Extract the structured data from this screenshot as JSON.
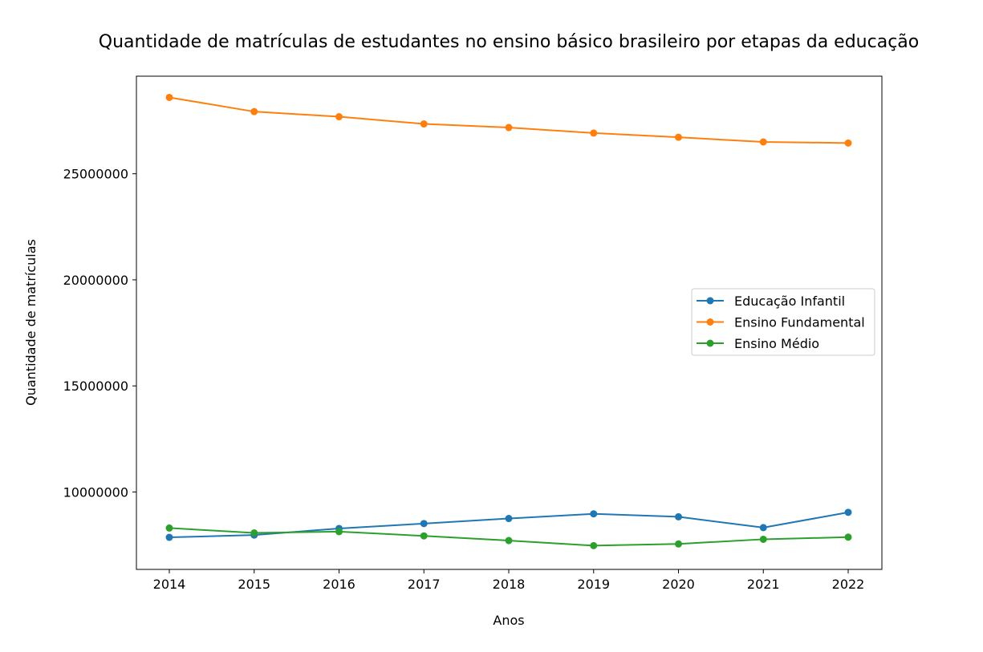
{
  "chart_data": {
    "type": "line",
    "title": "Quantidade de matrículas de estudantes no ensino básico brasileiro por etapas da educação",
    "xlabel": "Anos",
    "ylabel": "Quantidade de matrículas",
    "x": [
      "2014",
      "2015",
      "2016",
      "2017",
      "2018",
      "2019",
      "2020",
      "2021",
      "2022"
    ],
    "yticks": [
      "10000000",
      "15000000",
      "20000000",
      "25000000"
    ],
    "ylim": [
      6350000,
      29600000
    ],
    "grid": false,
    "legend_position": "center-right",
    "series": [
      {
        "name": "Educação Infantil",
        "color": "#1f77b4",
        "values": [
          7860000,
          7970000,
          8280000,
          8510000,
          8750000,
          8970000,
          8830000,
          8320000,
          9040000
        ]
      },
      {
        "name": "Ensino Fundamental",
        "color": "#ff7f0e",
        "values": [
          28600000,
          27930000,
          27690000,
          27350000,
          27180000,
          26920000,
          26720000,
          26500000,
          26450000
        ]
      },
      {
        "name": "Ensino Médio",
        "color": "#2ca02c",
        "values": [
          8300000,
          8070000,
          8130000,
          7930000,
          7710000,
          7470000,
          7550000,
          7770000,
          7870000
        ]
      }
    ]
  }
}
